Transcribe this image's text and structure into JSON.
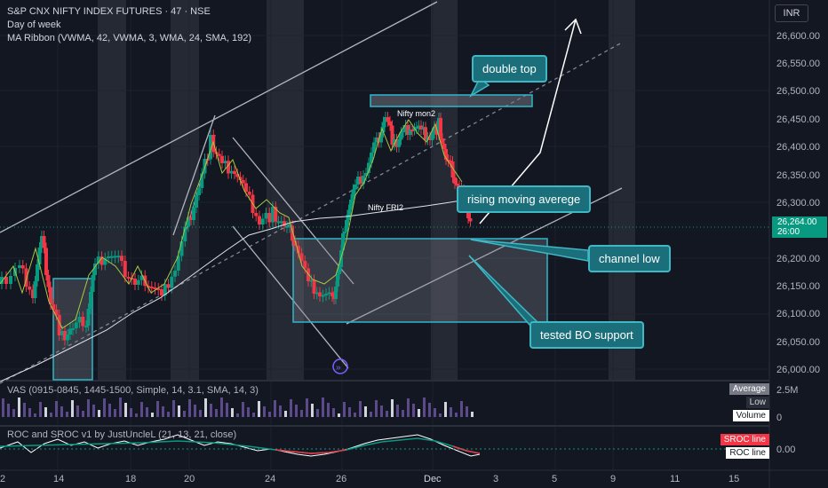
{
  "header": {
    "symbol_line": "S&P CNX NIFTY INDEX FUTURES · 47 · NSE",
    "indicator_1": "Day of week",
    "indicator_2": "MA Ribbon (VWMA, 42, VWMA, 3, WMA, 24, SMA, 192)"
  },
  "toolbar": {
    "currency": "INR"
  },
  "price_axis": {
    "labels": [
      "26,600.00",
      "26,550.00",
      "26,500.00",
      "26,450.00",
      "26,400.00",
      "26,350.00",
      "26,300.00",
      "26,200.00",
      "26,150.00",
      "26,100.00",
      "26,050.00",
      "26,000.00"
    ],
    "current_price": "26,264.00",
    "countdown": "26:00"
  },
  "time_axis": {
    "labels": [
      "2",
      "14",
      "18",
      "20",
      "24",
      "26",
      "Dec",
      "3",
      "5",
      "9",
      "11",
      "15"
    ]
  },
  "annotations": {
    "double_top": "double top",
    "rising_ma": "rising moving averege",
    "channel_low": "channel low",
    "tested_bo": "tested BO support",
    "nifty_mon2": "Nifty mon2",
    "nifty_fri2": "Nifty FRI2"
  },
  "volume_panel": {
    "title": "VAS (0915-0845, 1445-1500, Simple, 14, 3.1, SMA, 14, 3)",
    "legend": [
      "Average",
      "Low",
      "Volume"
    ],
    "axis_labels": [
      "2.5M",
      "0"
    ]
  },
  "roc_panel": {
    "title": "ROC and SROC v1 by JustUncleL (21, 13, 21, close)",
    "legend": [
      "SROC line",
      "ROC line"
    ],
    "axis_label": "0.00"
  },
  "colors": {
    "background": "#131722",
    "up": "#089981",
    "down": "#f23645",
    "annotation": "#1a6f7a",
    "sroc": "#f23645"
  }
}
